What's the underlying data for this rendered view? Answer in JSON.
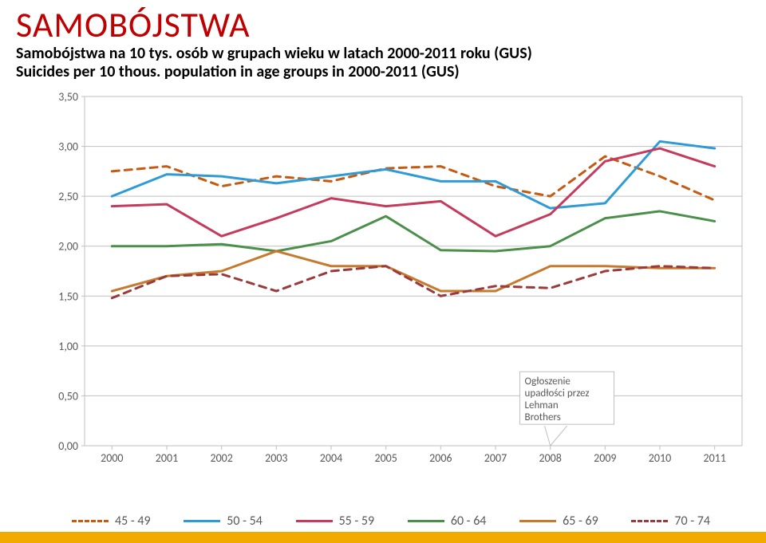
{
  "title": "SAMOBÓJSTWA",
  "subtitle_line1": "Samobójstwa na 10 tys. osób w grupach wieku w latach 2000-2011 roku (GUS)",
  "subtitle_line2": "Suicides per 10 thous. population in age groups in 2000-2011 (GUS)",
  "callout": "Ogłoszenie\nupadłości przez\nLehman\nBrothers",
  "chart": {
    "type": "line",
    "background_color": "#ffffff",
    "plot_border_color": "#bfbfbf",
    "x_categories": [
      "2000",
      "2001",
      "2002",
      "2003",
      "2004",
      "2005",
      "2006",
      "2007",
      "2008",
      "2009",
      "2010",
      "2011"
    ],
    "y_ticks": [
      "0,00",
      "0,50",
      "1,00",
      "1,50",
      "2,00",
      "2,50",
      "3,00",
      "3,50"
    ],
    "y_min": 0.0,
    "y_max": 3.5,
    "label_fontsize": 14,
    "label_color": "#595959",
    "line_width": 3,
    "callout_pointer": {
      "from_x": 8.1,
      "from_y": 0.55,
      "to_x": 8,
      "to_y": 0.0,
      "color": "#bfbfbf"
    },
    "series": [
      {
        "name": "45 - 49",
        "color": "#c55a11",
        "dash": "9,7",
        "data": [
          2.75,
          2.8,
          2.6,
          2.7,
          2.65,
          2.78,
          2.8,
          2.6,
          2.5,
          2.9,
          2.7,
          2.46
        ]
      },
      {
        "name": "50 - 54",
        "color": "#2e9bd6",
        "dash": "",
        "data": [
          2.5,
          2.72,
          2.7,
          2.63,
          2.7,
          2.77,
          2.65,
          2.65,
          2.38,
          2.43,
          3.05,
          2.98
        ]
      },
      {
        "name": "55 - 59",
        "color": "#c43b5d",
        "dash": "",
        "data": [
          2.4,
          2.42,
          2.1,
          2.28,
          2.48,
          2.4,
          2.45,
          2.1,
          2.32,
          2.85,
          2.98,
          2.8
        ]
      },
      {
        "name": "60 - 64",
        "color": "#4a8f4a",
        "dash": "",
        "data": [
          2.0,
          2.0,
          2.02,
          1.95,
          2.05,
          2.3,
          1.96,
          1.95,
          2.0,
          2.28,
          2.35,
          2.25
        ]
      },
      {
        "name": "65 - 69",
        "color": "#c67a2e",
        "dash": "",
        "data": [
          1.55,
          1.7,
          1.75,
          1.95,
          1.8,
          1.8,
          1.55,
          1.55,
          1.8,
          1.8,
          1.78,
          1.78
        ]
      },
      {
        "name": "70 - 74",
        "color": "#9a3a3a",
        "dash": "9,7",
        "data": [
          1.48,
          1.7,
          1.72,
          1.55,
          1.75,
          1.8,
          1.5,
          1.6,
          1.58,
          1.75,
          1.8,
          1.78
        ]
      }
    ]
  },
  "legend": [
    {
      "label": "45 - 49",
      "color": "#c55a11",
      "dash": true
    },
    {
      "label": "50 - 54",
      "color": "#2e9bd6",
      "dash": false
    },
    {
      "label": "55 - 59",
      "color": "#c43b5d",
      "dash": false
    },
    {
      "label": "60 - 64",
      "color": "#4a8f4a",
      "dash": false
    },
    {
      "label": "65 - 69",
      "color": "#c67a2e",
      "dash": false
    },
    {
      "label": "70 - 74",
      "color": "#9a3a3a",
      "dash": true
    }
  ],
  "accent_band_color": "#f2a900"
}
